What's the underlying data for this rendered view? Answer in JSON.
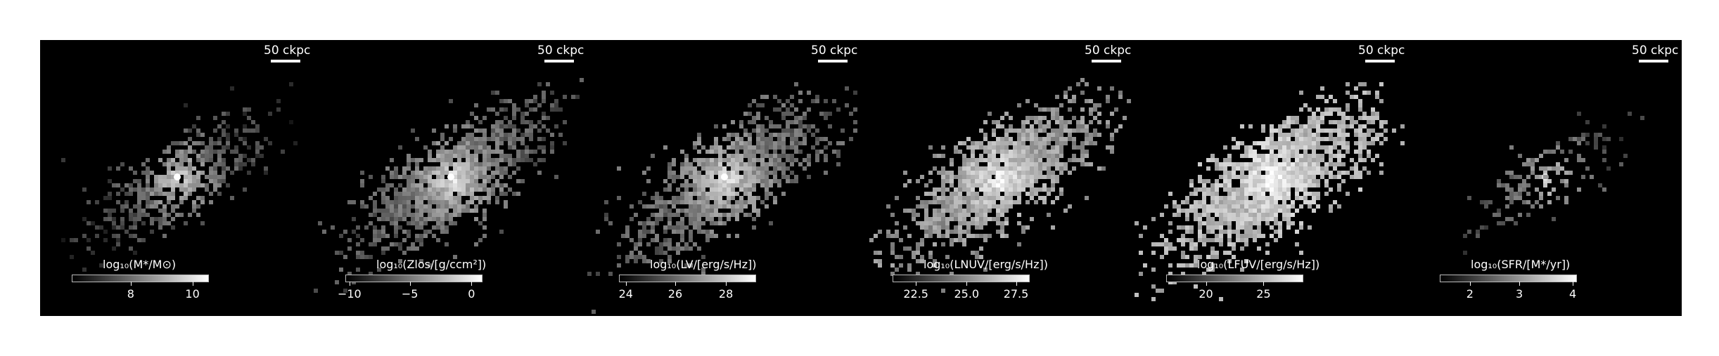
{
  "scale_label": "50 ckpc",
  "panels": [
    {
      "name": "stellar-mass",
      "cb_label": "log₁₀(M*/M⊙)",
      "ticks": [
        "8",
        "10"
      ],
      "colormap": "gray"
    },
    {
      "name": "metallicity",
      "cb_label": "log₁₀(Zlos/[g/ccm²])",
      "ticks": [
        "−10",
        "−5",
        "0"
      ],
      "colormap": "gray"
    },
    {
      "name": "luminosity-v",
      "cb_label": "log₁₀(LV/[erg/s/Hz])",
      "ticks": [
        "24",
        "26",
        "28"
      ],
      "colormap": "gray"
    },
    {
      "name": "luminosity-nuv",
      "cb_label": "log₁₀(LNUV/[erg/s/Hz])",
      "ticks": [
        "22.5",
        "25.0",
        "27.5"
      ],
      "colormap": "gray"
    },
    {
      "name": "luminosity-fuv",
      "cb_label": "log₁₀(LFUV/[erg/s/Hz])",
      "ticks": [
        "20",
        "25"
      ],
      "colormap": "gray"
    },
    {
      "name": "star-formation-rate",
      "cb_label": "log₁₀(SFR/[M*/yr])",
      "ticks": [
        "2",
        "3",
        "4"
      ],
      "colormap": "gray"
    }
  ],
  "colors": {
    "background": "#000000",
    "page": "#ffffff",
    "text": "#ffffff"
  }
}
